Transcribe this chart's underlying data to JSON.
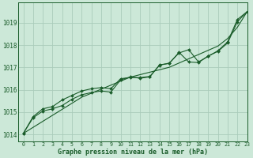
{
  "background_color": "#cce8d8",
  "grid_color": "#aaccbb",
  "line_color": "#1a5c2a",
  "text_color": "#1a5c2a",
  "xlabel": "Graphe pression niveau de la mer (hPa)",
  "xlim": [
    -0.5,
    23
  ],
  "ylim": [
    1013.7,
    1019.9
  ],
  "yticks": [
    1014,
    1015,
    1016,
    1017,
    1018,
    1019
  ],
  "xticks": [
    0,
    1,
    2,
    3,
    4,
    5,
    6,
    7,
    8,
    9,
    10,
    11,
    12,
    13,
    14,
    15,
    16,
    17,
    18,
    19,
    20,
    21,
    22,
    23
  ],
  "smooth_line": [
    1014.05,
    1014.32,
    1014.59,
    1014.86,
    1015.13,
    1015.4,
    1015.67,
    1015.85,
    1016.03,
    1016.21,
    1016.39,
    1016.57,
    1016.68,
    1016.79,
    1016.9,
    1017.01,
    1017.2,
    1017.39,
    1017.58,
    1017.77,
    1017.96,
    1018.3,
    1018.8,
    1019.5
  ],
  "series1": [
    1014.05,
    1014.8,
    1015.15,
    1015.25,
    1015.55,
    1015.75,
    1015.95,
    1016.05,
    1016.1,
    1016.05,
    1016.5,
    1016.55,
    1016.55,
    1016.6,
    1017.1,
    1017.2,
    1017.65,
    1017.8,
    1017.25,
    1017.5,
    1017.75,
    1018.15,
    1019.15,
    1019.5
  ],
  "series2": [
    1014.05,
    1014.75,
    1015.05,
    1015.15,
    1015.3,
    1015.58,
    1015.78,
    1015.88,
    1015.95,
    1015.9,
    1016.45,
    1016.58,
    1016.52,
    1016.58,
    1017.12,
    1017.18,
    1017.68,
    1017.25,
    1017.22,
    1017.52,
    1017.72,
    1018.1,
    1019.05,
    1019.5
  ]
}
